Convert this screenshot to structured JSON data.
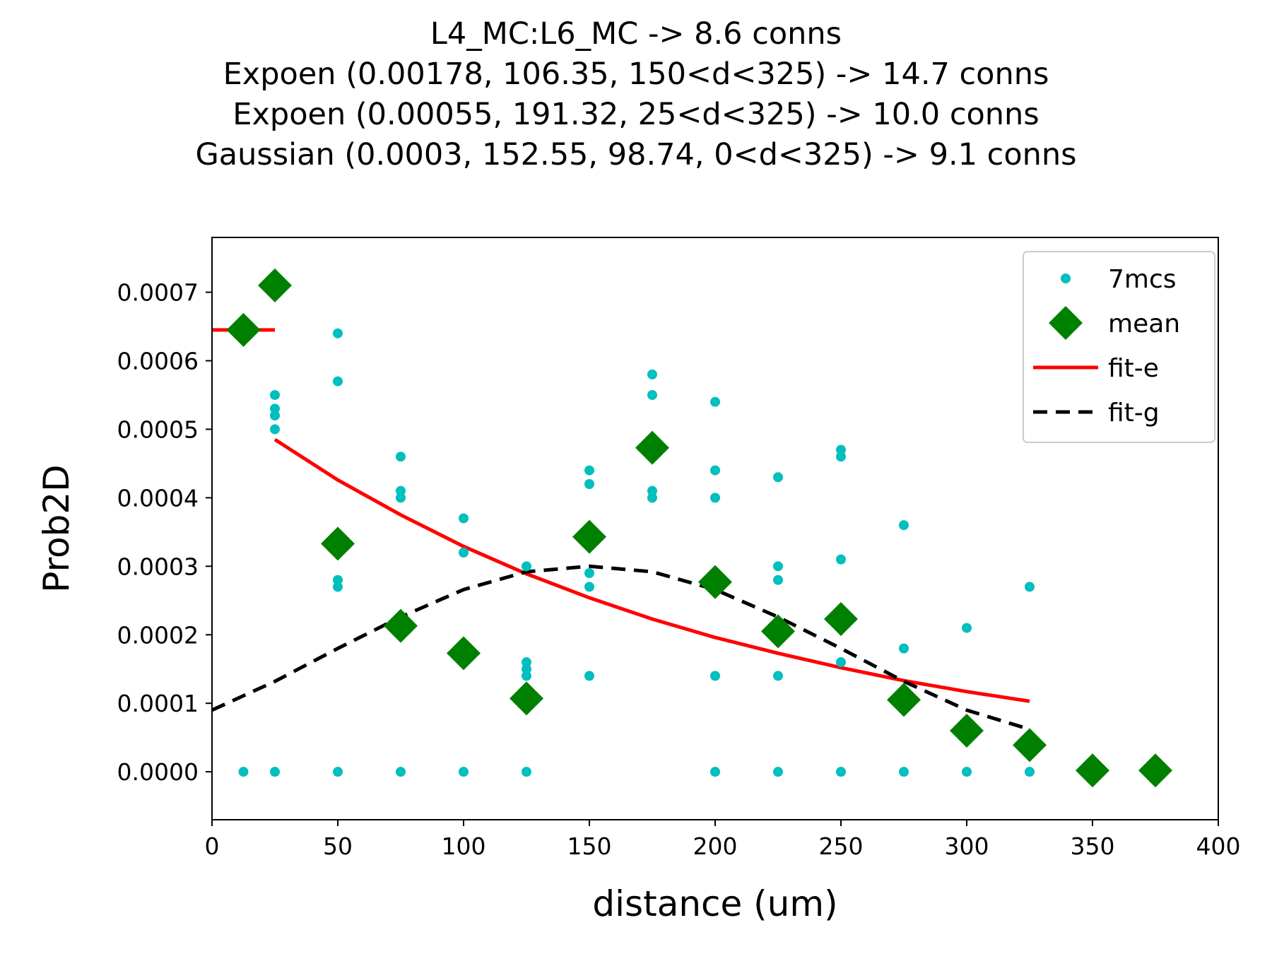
{
  "chart_data": {
    "type": "scatter",
    "title_lines": [
      "L4_MC:L6_MC -> 8.6 conns",
      "Expoen (0.00178, 106.35, 150<d<325) -> 14.7 conns",
      "Expoen (0.00055, 191.32, 25<d<325) -> 10.0 conns",
      "Gaussian (0.0003, 152.55, 98.74, 0<d<325) -> 9.1 conns"
    ],
    "xlabel": "distance (um)",
    "ylabel": "Prob2D",
    "xlim": [
      0,
      400
    ],
    "ylim": [
      -7e-05,
      0.00078
    ],
    "xticks": [
      0,
      50,
      100,
      150,
      200,
      250,
      300,
      350,
      400
    ],
    "xtick_labels": [
      "0",
      "50",
      "100",
      "150",
      "200",
      "250",
      "300",
      "350",
      "400"
    ],
    "yticks": [
      0,
      0.0001,
      0.0002,
      0.0003,
      0.0004,
      0.0005,
      0.0006,
      0.0007
    ],
    "ytick_labels": [
      "0.0000",
      "0.0001",
      "0.0002",
      "0.0003",
      "0.0004",
      "0.0005",
      "0.0006",
      "0.0007"
    ],
    "grid": false,
    "legend_position": "top-right",
    "legend": [
      {
        "label": "7mcs",
        "style": "dot",
        "color": "#00bfbf"
      },
      {
        "label": "mean",
        "style": "diamond",
        "color": "#008000"
      },
      {
        "label": "fit-e",
        "style": "solid",
        "color": "#ff0000"
      },
      {
        "label": "fit-g",
        "style": "dashed",
        "color": "#000000"
      }
    ],
    "series": [
      {
        "name": "7mcs",
        "kind": "points",
        "color": "#00bfbf",
        "points": [
          [
            12.5,
            0
          ],
          [
            25,
            0.00055
          ],
          [
            25,
            0.00053
          ],
          [
            25,
            0.00052
          ],
          [
            25,
            0.0005
          ],
          [
            25,
            0
          ],
          [
            50,
            0.00064
          ],
          [
            50,
            0.00057
          ],
          [
            50,
            0.00028
          ],
          [
            50,
            0.00027
          ],
          [
            50,
            0
          ],
          [
            75,
            0.00046
          ],
          [
            75,
            0.00041
          ],
          [
            75,
            0.0004
          ],
          [
            75,
            0.00022
          ],
          [
            75,
            0.00021
          ],
          [
            75,
            0
          ],
          [
            100,
            0.00037
          ],
          [
            100,
            0.00032
          ],
          [
            100,
            0
          ],
          [
            125,
            0.0003
          ],
          [
            125,
            0.00016
          ],
          [
            125,
            0.00015
          ],
          [
            125,
            0.00014
          ],
          [
            125,
            0
          ],
          [
            150,
            0.00044
          ],
          [
            150,
            0.00042
          ],
          [
            150,
            0.00029
          ],
          [
            150,
            0.00027
          ],
          [
            150,
            0.00014
          ],
          [
            175,
            0.00058
          ],
          [
            175,
            0.00055
          ],
          [
            175,
            0.00041
          ],
          [
            175,
            0.0004
          ],
          [
            200,
            0.00054
          ],
          [
            200,
            0.00044
          ],
          [
            200,
            0.0004
          ],
          [
            200,
            0.00014
          ],
          [
            200,
            0
          ],
          [
            225,
            0.00043
          ],
          [
            225,
            0.0003
          ],
          [
            225,
            0.00028
          ],
          [
            225,
            0.00014
          ],
          [
            225,
            0
          ],
          [
            250,
            0.00047
          ],
          [
            250,
            0.00046
          ],
          [
            250,
            0.00031
          ],
          [
            250,
            0.00016
          ],
          [
            250,
            0
          ],
          [
            275,
            0.00036
          ],
          [
            275,
            0.00018
          ],
          [
            275,
            0
          ],
          [
            300,
            0.00021
          ],
          [
            300,
            0
          ],
          [
            325,
            0.00027
          ],
          [
            325,
            0
          ]
        ]
      },
      {
        "name": "mean",
        "kind": "points",
        "color": "#008000",
        "points": [
          [
            12.5,
            0.000645
          ],
          [
            25,
            0.00071
          ],
          [
            50,
            0.000333
          ],
          [
            75,
            0.000213
          ],
          [
            100,
            0.000173
          ],
          [
            125,
            0.000107
          ],
          [
            150,
            0.000343
          ],
          [
            175,
            0.000473
          ],
          [
            200,
            0.000277
          ],
          [
            225,
            0.000205
          ],
          [
            250,
            0.000223
          ],
          [
            275,
            0.000105
          ],
          [
            300,
            6e-05
          ],
          [
            325,
            3.9e-05
          ],
          [
            350,
            2e-06
          ],
          [
            375,
            2e-06
          ]
        ]
      },
      {
        "name": "fit-e",
        "kind": "line",
        "color": "#ff0000",
        "segments": [
          [
            [
              0,
              0.000645
            ],
            [
              25,
              0.000645
            ]
          ],
          [
            [
              25,
              0.000485
            ],
            [
              50,
              0.000426
            ],
            [
              75,
              0.000375
            ],
            [
              100,
              0.000329
            ],
            [
              125,
              0.000289
            ],
            [
              150,
              0.000254
            ],
            [
              175,
              0.000223
            ],
            [
              200,
              0.000196
            ],
            [
              225,
              0.000173
            ],
            [
              250,
              0.000152
            ],
            [
              275,
              0.000133
            ],
            [
              300,
              0.000117
            ],
            [
              325,
              0.000103
            ]
          ]
        ]
      },
      {
        "name": "fit-g",
        "kind": "line",
        "dashed": true,
        "color": "#000000",
        "segments": [
          [
            [
              0,
              9e-05
            ],
            [
              25,
              0.000132
            ],
            [
              50,
              0.00018
            ],
            [
              75,
              0.000226
            ],
            [
              100,
              0.000266
            ],
            [
              125,
              0.000292
            ],
            [
              150,
              0.0003
            ],
            [
              175,
              0.000292
            ],
            [
              200,
              0.000266
            ],
            [
              225,
              0.000226
            ],
            [
              250,
              0.00018
            ],
            [
              275,
              0.000132
            ],
            [
              300,
              9e-05
            ],
            [
              325,
              6.2e-05
            ]
          ]
        ]
      }
    ]
  }
}
